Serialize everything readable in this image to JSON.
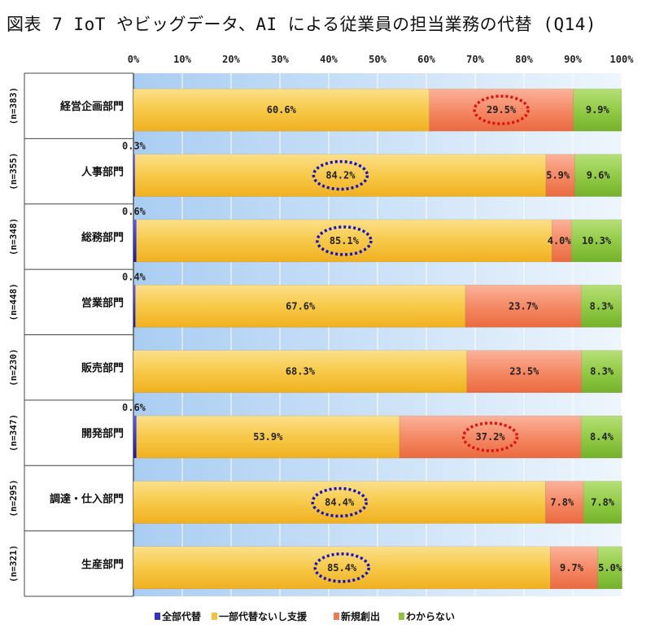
{
  "title": "図表 7  IoT やビッグデータ、AI による従業員の担当業務の代替 (Q14)",
  "chart_data": {
    "type": "bar",
    "orientation": "horizontal",
    "stacked": "percent",
    "xlim": [
      0,
      100
    ],
    "x_ticks": [
      "0%",
      "10%",
      "20%",
      "30%",
      "40%",
      "50%",
      "60%",
      "70%",
      "80%",
      "90%",
      "100%"
    ],
    "grid": true,
    "legend_position": "bottom",
    "categories": [
      "経営企画部門",
      "人事部門",
      "総務部門",
      "営業部門",
      "販売部門",
      "開発部門",
      "調達・仕入部門",
      "生産部門"
    ],
    "sample_sizes": [
      "(n=383)",
      "(n=355)",
      "(n=348)",
      "(n=448)",
      "(n=230)",
      "(n=347)",
      "(n=295)",
      "(n=321)"
    ],
    "series": [
      {
        "name": "全部代替",
        "color": "#3333cc",
        "values": [
          0,
          0.3,
          0.6,
          0.4,
          0,
          0.6,
          0,
          0
        ],
        "labels": [
          "",
          "0.3%",
          "0.6%",
          "0.4%",
          "",
          "0.6%",
          "",
          ""
        ]
      },
      {
        "name": "一部代替ないし支援",
        "color": "#f5c040",
        "values": [
          60.6,
          84.2,
          85.1,
          67.6,
          68.3,
          53.9,
          84.4,
          85.4
        ],
        "labels": [
          "60.6%",
          "84.2%",
          "85.1%",
          "67.6%",
          "68.3%",
          "53.9%",
          "84.4%",
          "85.4%"
        ]
      },
      {
        "name": "新規創出",
        "color": "#f07a55",
        "values": [
          29.5,
          5.9,
          4.0,
          23.7,
          23.5,
          37.2,
          7.8,
          9.7
        ],
        "labels": [
          "29.5%",
          "5.9%",
          "4.0%",
          "23.7%",
          "23.5%",
          "37.2%",
          "7.8%",
          "9.7%"
        ]
      },
      {
        "name": "わからない",
        "color": "#8cc63f",
        "values": [
          9.9,
          9.6,
          10.3,
          8.3,
          8.3,
          8.4,
          7.8,
          5.0
        ],
        "labels": [
          "9.9%",
          "9.6%",
          "10.3%",
          "8.3%",
          "8.3%",
          "8.4%",
          "7.8%",
          "5.0%"
        ]
      }
    ],
    "highlights": [
      {
        "row": 0,
        "series": 2,
        "color": "#dd1111"
      },
      {
        "row": 1,
        "series": 1,
        "color": "#1111cc"
      },
      {
        "row": 2,
        "series": 1,
        "color": "#1111cc"
      },
      {
        "row": 5,
        "series": 2,
        "color": "#dd1111"
      },
      {
        "row": 6,
        "series": 1,
        "color": "#1111cc"
      },
      {
        "row": 7,
        "series": 1,
        "color": "#1111cc"
      }
    ]
  }
}
